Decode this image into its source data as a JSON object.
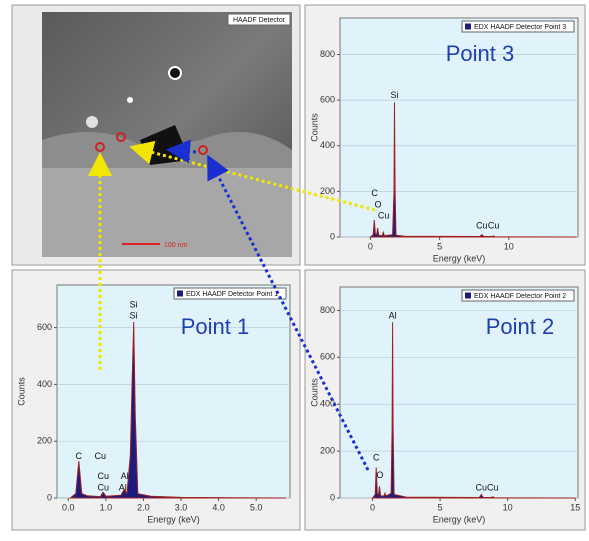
{
  "image": {
    "label": "HAADF Detector",
    "scale_bar": "100 nm"
  },
  "chart_data": [
    {
      "type": "area",
      "title": "Point 3",
      "legend": "EDX HAADF Detector Point 3",
      "x_label": "Energy (keV)",
      "y_label": "Counts",
      "x": [
        0,
        0.2,
        0.28,
        0.36,
        0.45,
        0.52,
        0.6,
        0.85,
        0.93,
        1.0,
        1.6,
        1.7,
        1.74,
        1.78,
        1.85,
        2.5,
        7.9,
        8.05,
        8.2,
        8.8,
        8.9,
        9.0,
        14.9
      ],
      "values": [
        0,
        10,
        75,
        12,
        10,
        40,
        8,
        6,
        20,
        6,
        10,
        200,
        590,
        200,
        8,
        3,
        2,
        10,
        2,
        2,
        5,
        1,
        0
      ],
      "xlim": [
        -2.2,
        15
      ],
      "ylim": [
        0,
        960
      ],
      "xticks": [
        0,
        5,
        10
      ],
      "yticks": [
        0,
        200,
        400,
        600,
        800
      ],
      "grid": true,
      "annotations": [
        {
          "text": "Si",
          "x": 1.74,
          "y": 620
        },
        {
          "text": "C",
          "x": 0.3,
          "y": 190
        },
        {
          "text": "O",
          "x": 0.55,
          "y": 140
        },
        {
          "text": "Cu",
          "x": 0.95,
          "y": 92
        },
        {
          "text": "Cu",
          "x": 8.05,
          "y": 48
        },
        {
          "text": "Cu",
          "x": 8.9,
          "y": 48
        }
      ]
    },
    {
      "type": "area",
      "title": "Point 1",
      "legend": "EDX HAADF Detector Point 1",
      "x_label": "Energy (keV)",
      "y_label": "Counts",
      "x": [
        0.05,
        0.2,
        0.28,
        0.36,
        0.5,
        0.85,
        0.93,
        1.0,
        1.4,
        1.49,
        1.56,
        1.65,
        1.7,
        1.74,
        1.78,
        1.85,
        2.2,
        3,
        5.8
      ],
      "values": [
        0,
        15,
        130,
        15,
        8,
        5,
        20,
        6,
        10,
        30,
        15,
        150,
        420,
        620,
        300,
        15,
        6,
        2,
        0
      ],
      "xlim": [
        -0.3,
        5.9
      ],
      "ylim": [
        0,
        750
      ],
      "xticks": [
        {
          "value": 0,
          "label": "0.0"
        },
        {
          "value": 1,
          "label": "1.0"
        },
        {
          "value": 2,
          "label": "2.0"
        },
        {
          "value": 3,
          "label": "3.0"
        },
        {
          "value": 4,
          "label": "4.0"
        },
        {
          "value": 5,
          "label": "5.0"
        }
      ],
      "yticks": [
        0,
        200,
        400,
        600
      ],
      "grid": true,
      "annotations": [
        {
          "text": "Si",
          "x": 1.74,
          "y": 680
        },
        {
          "text": "Si",
          "x": 1.74,
          "y": 640
        },
        {
          "text": "C",
          "x": 0.28,
          "y": 145
        },
        {
          "text": "Cu",
          "x": 0.85,
          "y": 145
        },
        {
          "text": "Cu",
          "x": 0.93,
          "y": 75
        },
        {
          "text": "Cu",
          "x": 0.93,
          "y": 35
        },
        {
          "text": "Al",
          "x": 1.5,
          "y": 75
        },
        {
          "text": "Al",
          "x": 1.45,
          "y": 35
        }
      ]
    },
    {
      "type": "area",
      "title": "Point 2",
      "legend": "EDX HAADF Detector Point 2",
      "x_label": "Energy (keV)",
      "y_label": "Counts",
      "x": [
        0,
        0.2,
        0.28,
        0.36,
        0.45,
        0.52,
        0.6,
        0.85,
        0.93,
        1.0,
        1.38,
        1.45,
        1.49,
        1.53,
        1.6,
        2.5,
        7.9,
        8.05,
        8.2,
        8.8,
        8.9,
        9.0,
        15
      ],
      "values": [
        0,
        15,
        130,
        20,
        15,
        50,
        10,
        8,
        20,
        8,
        20,
        300,
        750,
        300,
        15,
        4,
        2,
        15,
        2,
        2,
        6,
        1,
        0
      ],
      "xlim": [
        -2.4,
        15.2
      ],
      "ylim": [
        0,
        900
      ],
      "xticks": [
        0,
        5,
        10,
        15
      ],
      "yticks": [
        0,
        200,
        400,
        600,
        800
      ],
      "grid": true,
      "annotations": [
        {
          "text": "Al",
          "x": 1.49,
          "y": 775
        },
        {
          "text": "C",
          "x": 0.28,
          "y": 170
        },
        {
          "text": "O",
          "x": 0.55,
          "y": 95
        },
        {
          "text": "Cu",
          "x": 8.05,
          "y": 42
        },
        {
          "text": "Cu",
          "x": 8.9,
          "y": 42
        }
      ]
    }
  ]
}
